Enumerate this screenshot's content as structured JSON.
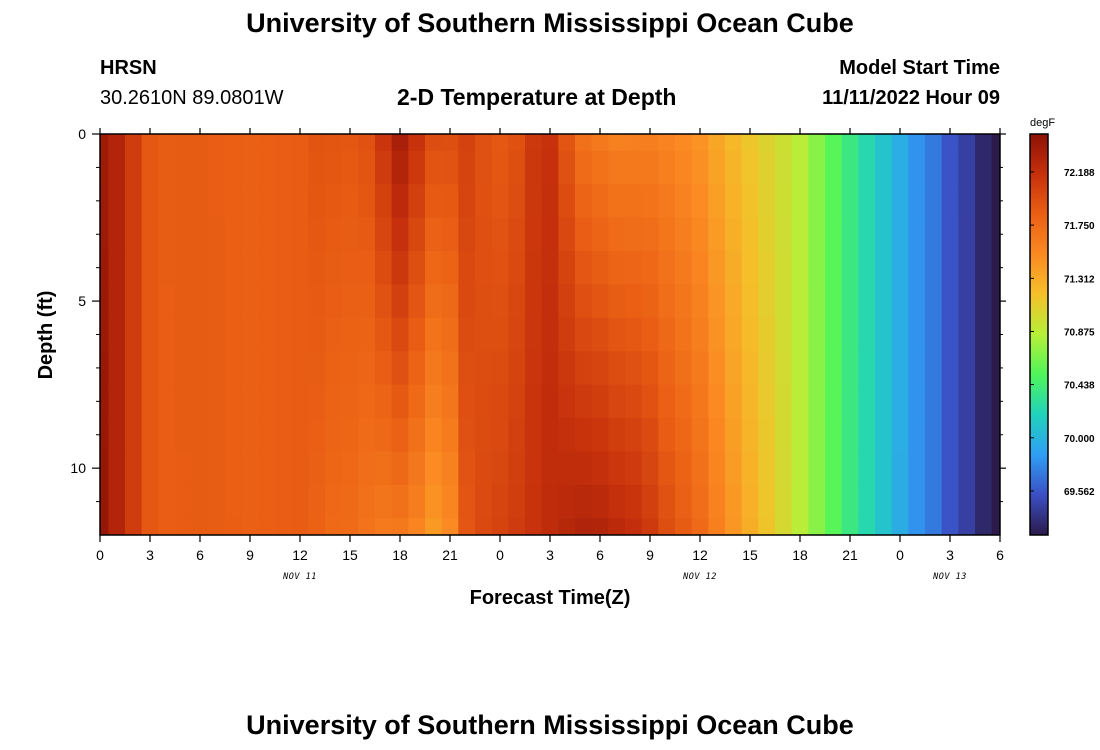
{
  "header": {
    "title": "University of Southern Mississippi Ocean Cube",
    "station": "HRSN",
    "coords": "30.2610N  89.0801W",
    "subtitle": "2-D Temperature at Depth",
    "model_start_label": "Model Start Time",
    "model_start_value": "11/11/2022 Hour 09"
  },
  "footer": {
    "title": "University of Southern Mississippi Ocean Cube"
  },
  "chart_data": {
    "type": "heatmap",
    "title": "2-D Temperature at Depth",
    "xlabel": "Forecast Time(Z)",
    "ylabel": "Depth (ft)",
    "x_unit": "hours since 11/11/2022 00Z",
    "xlim": [
      0,
      54
    ],
    "ylim": [
      12,
      0
    ],
    "y_reversed": true,
    "x_ticks": [
      {
        "v": 0,
        "label": "0"
      },
      {
        "v": 3,
        "label": "3"
      },
      {
        "v": 6,
        "label": "6"
      },
      {
        "v": 9,
        "label": "9"
      },
      {
        "v": 12,
        "label": "12"
      },
      {
        "v": 15,
        "label": "15"
      },
      {
        "v": 18,
        "label": "18"
      },
      {
        "v": 21,
        "label": "21"
      },
      {
        "v": 24,
        "label": "0"
      },
      {
        "v": 27,
        "label": "3"
      },
      {
        "v": 30,
        "label": "6"
      },
      {
        "v": 33,
        "label": "9"
      },
      {
        "v": 36,
        "label": "12"
      },
      {
        "v": 39,
        "label": "15"
      },
      {
        "v": 42,
        "label": "18"
      },
      {
        "v": 45,
        "label": "21"
      },
      {
        "v": 48,
        "label": "0"
      },
      {
        "v": 51,
        "label": "3"
      },
      {
        "v": 54,
        "label": "6"
      }
    ],
    "date_labels": [
      {
        "v": 12,
        "label": "NOV 11"
      },
      {
        "v": 36,
        "label": "NOV 12"
      },
      {
        "v": 51,
        "label": "NOV 13"
      }
    ],
    "y_ticks": [
      {
        "v": 0,
        "label": "0"
      },
      {
        "v": 5,
        "label": "5"
      },
      {
        "v": 10,
        "label": "10"
      }
    ],
    "y_minor_ticks": [
      1,
      2,
      3,
      4,
      6,
      7,
      8,
      9,
      11
    ],
    "colorbar": {
      "unit": "degF",
      "range": [
        69.2,
        72.5
      ],
      "levels": [
        "72.188",
        "71.750",
        "71.312",
        "70.875",
        "70.438",
        "70.000",
        "69.562"
      ],
      "level_values": [
        72.188,
        71.75,
        71.312,
        70.875,
        70.438,
        70.0,
        69.562
      ],
      "colors": [
        "#2b1a4a",
        "#3b4fc4",
        "#2f9ef4",
        "#21d2bc",
        "#4ff55a",
        "#b6ef38",
        "#f5c02a",
        "#fb8a22",
        "#ea5f14",
        "#c6300c",
        "#8e1206"
      ]
    },
    "depths_ft": [
      0,
      1,
      2,
      3,
      4,
      5,
      6,
      7,
      8,
      9,
      10,
      11,
      12
    ],
    "times_h": [
      0,
      1,
      2,
      3,
      4,
      5,
      6,
      7,
      8,
      9,
      10,
      11,
      12,
      13,
      14,
      15,
      16,
      17,
      18,
      19,
      20,
      21,
      22,
      23,
      24,
      25,
      26,
      27,
      28,
      29,
      30,
      31,
      32,
      33,
      34,
      35,
      36,
      37,
      38,
      39,
      40,
      41,
      42,
      43,
      44,
      45,
      46,
      47,
      48,
      49,
      50,
      51,
      52,
      53,
      54
    ],
    "surface_temp_degF": [
      72.4,
      72.3,
      72.1,
      71.9,
      71.85,
      71.85,
      71.85,
      71.85,
      71.85,
      71.85,
      71.85,
      71.85,
      71.85,
      71.9,
      71.9,
      71.9,
      71.95,
      72.15,
      72.35,
      72.15,
      71.95,
      71.95,
      72.05,
      71.95,
      71.9,
      71.95,
      72.1,
      72.15,
      71.9,
      71.7,
      71.65,
      71.6,
      71.6,
      71.6,
      71.55,
      71.5,
      71.45,
      71.35,
      71.25,
      71.15,
      71.05,
      70.95,
      70.85,
      70.7,
      70.55,
      70.4,
      70.25,
      70.1,
      69.95,
      69.8,
      69.7,
      69.55,
      69.45,
      69.3,
      69.2
    ],
    "bottom_temp_degF": [
      72.45,
      72.3,
      72.1,
      71.9,
      71.85,
      71.85,
      71.85,
      71.85,
      71.85,
      71.85,
      71.85,
      71.85,
      71.85,
      71.8,
      71.75,
      71.75,
      71.7,
      71.65,
      71.65,
      71.55,
      71.4,
      71.5,
      71.9,
      72.0,
      72.05,
      72.1,
      72.15,
      72.2,
      72.25,
      72.3,
      72.3,
      72.25,
      72.2,
      72.1,
      71.95,
      71.85,
      71.75,
      71.6,
      71.45,
      71.3,
      71.15,
      71.0,
      70.85,
      70.7,
      70.55,
      70.4,
      70.25,
      70.1,
      69.95,
      69.8,
      69.7,
      69.55,
      69.45,
      69.3,
      69.2
    ]
  }
}
